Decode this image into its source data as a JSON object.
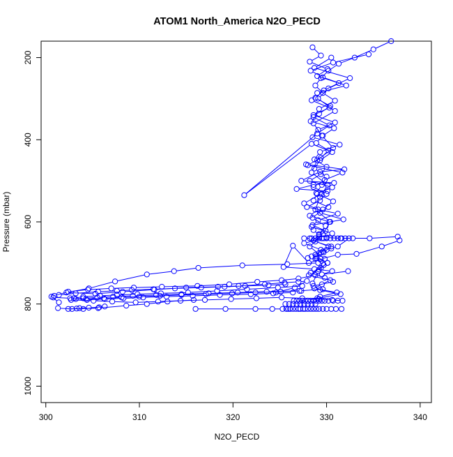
{
  "chart_data": {
    "type": "scatter",
    "title": "ATOM1 North_America N2O_PECD",
    "xlabel": "N2O_PECD",
    "ylabel": "Pressure (mbar)",
    "xlim": [
      299.5,
      341.2
    ],
    "ylim": [
      1040,
      160
    ],
    "y_reversed": true,
    "x_ticks": [
      300,
      310,
      320,
      330,
      340
    ],
    "y_ticks": [
      200,
      400,
      600,
      800,
      1000
    ],
    "x_tick_labels": [
      "300",
      "310",
      "320",
      "330",
      "340"
    ],
    "y_tick_labels": [
      "200",
      "400",
      "600",
      "800",
      "1000"
    ],
    "grid": false,
    "legend": "none",
    "colors": {
      "series": "#0000ff",
      "axes": "#000000",
      "background": "#ffffff"
    },
    "marker": "open-circle",
    "connected": true,
    "series": [
      {
        "x": [
          328.5,
          329.4,
          328.2,
          330.1,
          329.0,
          331.3,
          329.7,
          328.8,
          330.4,
          329.2,
          328.3,
          330.8,
          329.6,
          328.9,
          330.2,
          329.4,
          328.0,
          331.7,
          329.8,
          328.6,
          330.0,
          329.3,
          327.9,
          331.2,
          329.1,
          328.4,
          330.6,
          329.7,
          327.6,
          329.4,
          328.9,
          330.1,
          329.2,
          328.1,
          330.4,
          329.5,
          328.7,
          331.1,
          329.3,
          328.0
        ],
        "y": [
          175,
          195,
          210,
          228,
          245,
          262,
          280,
          298,
          318,
          337,
          355,
          372,
          390,
          408,
          426,
          444,
          462,
          480,
          498,
          515,
          532,
          548,
          564,
          580,
          596,
          612,
          628,
          640,
          652,
          668,
          684,
          700,
          716,
          730,
          742,
          752,
          762,
          772,
          782,
          792
        ]
      },
      {
        "x": [
          334.5,
          330.7,
          328.3,
          329.6,
          332.1,
          329.0,
          328.4,
          330.3,
          328.6,
          330.9,
          329.1,
          328.5,
          331.4,
          329.3,
          328.7,
          330.0,
          329.4,
          328.2,
          330.6,
          329.0,
          328.6,
          330.2,
          329.3,
          331.8,
          328.5,
          329.9,
          329.2,
          328.8,
          330.5,
          329.7,
          328.9,
          330.1,
          329.4,
          328.3,
          329.8,
          330.7,
          328.6,
          329.3,
          331.5,
          329.0
        ],
        "y": [
          192,
          212,
          232,
          248,
          268,
          286,
          304,
          322,
          340,
          358,
          376,
          394,
          412,
          430,
          448,
          466,
          484,
          500,
          516,
          532,
          548,
          564,
          578,
          594,
          608,
          622,
          636,
          648,
          660,
          674,
          688,
          700,
          712,
          724,
          736,
          746,
          756,
          766,
          776,
          786
        ]
      },
      {
        "x": [
          336.9,
          335.0,
          333.0,
          331.3,
          330.2,
          329.4,
          328.8,
          329.6,
          330.9,
          329.2,
          328.6,
          330.3,
          329.0,
          321.2,
          328.4,
          330.6,
          329.3,
          328.7,
          330.0,
          329.5,
          328.9,
          330.7,
          329.6,
          328.5,
          329.9,
          329.2,
          328.6,
          330.2,
          329.4,
          328.8,
          329.7,
          329.1
        ],
        "y": [
          160,
          180,
          200,
          215,
          232,
          250,
          268,
          286,
          305,
          325,
          345,
          365,
          385,
          535,
          410,
          430,
          450,
          470,
          490,
          510,
          530,
          550,
          570,
          590,
          610,
          630,
          645,
          660,
          675,
          690,
          705,
          720
        ]
      },
      {
        "x": [
          330.5,
          328.7,
          332.5,
          330.2,
          329.1,
          330.9,
          328.6,
          329.5,
          330.7,
          329.0,
          328.4,
          330.1,
          329.3,
          328.8,
          330.4,
          329.6,
          328.2,
          329.8,
          329.1,
          328.5
        ],
        "y": [
          200,
          225,
          250,
          275,
          300,
          330,
          360,
          390,
          420,
          450,
          480,
          510,
          540,
          570,
          600,
          630,
          660,
          690,
          720,
          750
        ]
      },
      {
        "x": [
          327.8,
          331.9,
          329.3,
          327.3,
          330.8,
          328.6,
          326.8,
          330.1,
          329.4,
          327.6,
          329.1,
          328.2,
          330.3
        ],
        "y": [
          460,
          472,
          478,
          500,
          505,
          510,
          520,
          525,
          532,
          555,
          570,
          585,
          600
        ]
      },
      {
        "x": [
          328.6,
          329.2,
          330.0,
          331.5,
          332.8,
          334.6,
          337.6,
          337.8,
          335.9,
          333.2,
          331.2,
          329.4,
          328.1,
          326.4,
          325.4,
          328.7,
          330.6,
          329.5,
          332.3
        ],
        "y": [
          620,
          632,
          638,
          640,
          640,
          640,
          636,
          645,
          660,
          678,
          680,
          690,
          700,
          658,
          710,
          715,
          720,
          728,
          720
        ]
      },
      {
        "x": [
          328.2,
          327.6,
          328.4,
          328.8,
          329.2,
          329.5,
          330.0,
          330.4,
          330.8,
          331.2,
          331.6,
          332.0,
          332.4,
          331.2,
          330.5,
          330.0,
          329.6,
          329.2,
          328.8,
          328.4,
          328.0
        ],
        "y": [
          640,
          640,
          640,
          640,
          640,
          640,
          640,
          640,
          640,
          640,
          640,
          640,
          640,
          660,
          665,
          668,
          672,
          676,
          680,
          684,
          688
        ]
      },
      {
        "x": [
          329.1,
          325.8,
          321.0,
          316.3,
          313.7,
          310.8,
          307.4,
          304.6,
          302.2,
          305.3,
          308.2,
          311.6,
          315.0,
          318.4,
          320.6,
          323.4,
          325.5,
          327.0,
          327.9,
          326.6,
          324.6
        ],
        "y": [
          700,
          703,
          706,
          712,
          720,
          728,
          745,
          762,
          772,
          775,
          770,
          765,
          760,
          758,
          756,
          752,
          748,
          746,
          744,
          760,
          772
        ]
      },
      {
        "x": [
          328.8,
          327.0,
          325.2,
          322.6,
          319.6,
          316.2,
          312.4,
          309.4,
          307.0,
          304.5,
          302.4,
          300.9,
          301.4,
          303.2,
          305.6,
          307.6,
          309.2,
          311.5,
          313.8,
          316.6,
          319.1,
          321.3,
          323.8,
          325.6
        ],
        "y": [
          730,
          738,
          742,
          746,
          752,
          756,
          758,
          760,
          762,
          765,
          770,
          780,
          778,
          774,
          770,
          768,
          766,
          764,
          762,
          760,
          758,
          756,
          754,
          752
        ]
      },
      {
        "x": [
          327.4,
          324.8,
          321.5,
          318.3,
          315.2,
          312.3,
          309.8,
          307.6,
          305.8,
          304.0,
          303.0,
          304.4,
          306.3,
          308.3,
          310.4,
          312.9,
          315.7,
          318.6,
          321.9,
          324.3,
          326.4
        ],
        "y": [
          756,
          760,
          764,
          768,
          772,
          774,
          776,
          778,
          780,
          782,
          786,
          790,
          788,
          786,
          784,
          782,
          780,
          778,
          776,
          774,
          772
        ]
      },
      {
        "x": [
          329.6,
          327.1,
          323.6,
          320.5,
          317.4,
          314.5,
          311.8,
          309.3,
          307.2,
          305.5,
          304.0,
          303.2,
          302.7,
          305.1,
          307.1,
          309.6,
          312.0,
          314.4,
          317.0,
          319.8,
          322.5,
          325.2,
          327.4,
          329.2,
          330.6,
          331.7
        ],
        "y": [
          764,
          768,
          770,
          772,
          774,
          776,
          778,
          780,
          782,
          784,
          786,
          788,
          790,
          792,
          794,
          796,
          794,
          792,
          790,
          788,
          786,
          784,
          786,
          788,
          790,
          792
        ]
      },
      {
        "x": [
          301.4,
          300.6,
          300.8,
          302.6,
          304.3,
          306.2,
          308.1,
          310.0,
          312.2,
          314.5,
          317.1,
          319.9,
          322.4,
          325.1,
          327.3
        ],
        "y": [
          796,
          782,
          784,
          786,
          788,
          786,
          784,
          782,
          780,
          778,
          776,
          774,
          772,
          770,
          768
        ]
      },
      {
        "x": [
          301.3,
          302.8,
          303.6,
          304.6,
          305.7,
          306.3,
          304.0,
          303.3,
          302.4,
          305.6,
          308.6,
          310.8,
          313.0,
          315.8
        ],
        "y": [
          810,
          812,
          810,
          809,
          808,
          806,
          812,
          811,
          812,
          810,
          804,
          800,
          794,
          790
        ]
      },
      {
        "x": [
          316.0,
          319.2,
          322.4,
          324.2,
          325.3,
          325.7,
          325.9,
          326.1,
          326.4,
          326.7,
          327.0,
          327.2,
          327.5,
          327.7,
          328.0,
          328.3,
          328.6,
          328.9,
          329.2,
          329.6,
          330.0,
          330.5,
          331.0,
          331.6
        ],
        "y": [
          812,
          812,
          812,
          812,
          812,
          812,
          812,
          812,
          812,
          812,
          812,
          812,
          812,
          812,
          812,
          812,
          812,
          812,
          812,
          812,
          812,
          812,
          812,
          812
        ]
      },
      {
        "x": [
          326.5,
          326.8,
          327.1,
          327.4,
          327.7,
          328.0,
          328.3,
          328.6,
          328.9,
          329.2,
          329.5,
          329.8,
          330.2,
          330.7,
          331.2
        ],
        "y": [
          792,
          792,
          792,
          792,
          792,
          792,
          792,
          792,
          792,
          792,
          792,
          792,
          792,
          792,
          792
        ]
      },
      {
        "x": [
          325.6,
          326.0,
          326.4,
          326.8,
          327.2,
          327.6,
          328.0,
          328.4,
          328.8
        ],
        "y": [
          800,
          800,
          800,
          800,
          800,
          800,
          800,
          800,
          800
        ]
      }
    ]
  }
}
